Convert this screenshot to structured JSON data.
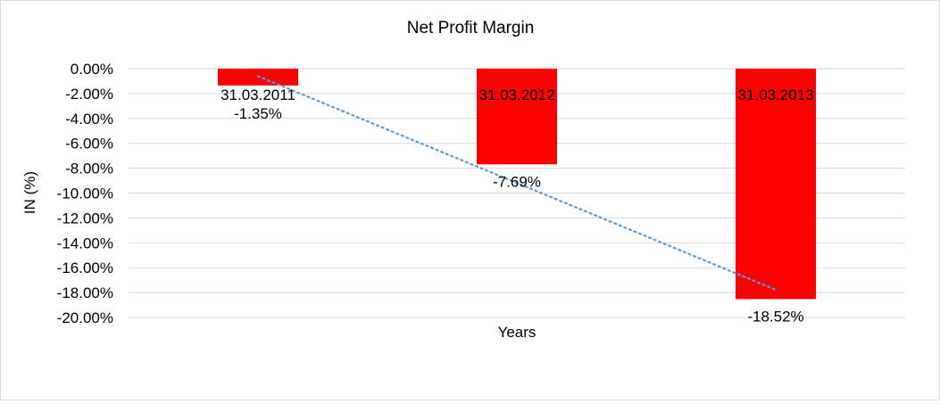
{
  "chart_data": {
    "type": "bar",
    "title": "Net Profit Margin",
    "xlabel": "Years",
    "ylabel": "IN (%)",
    "categories": [
      "31.03.2011",
      "31.03.2012",
      "31.03.2013"
    ],
    "values": [
      -1.35,
      -7.69,
      -18.52
    ],
    "data_labels": [
      "-1.35%",
      "-7.69%",
      "-18.52%"
    ],
    "ylim": [
      -20,
      0
    ],
    "yticks": [
      0,
      -2,
      -4,
      -6,
      -8,
      -10,
      -12,
      -14,
      -16,
      -18,
      -20
    ],
    "ytick_labels": [
      "0.00%",
      "-2.00%",
      "-4.00%",
      "-6.00%",
      "-8.00%",
      "-10.00%",
      "-12.00%",
      "-14.00%",
      "-16.00%",
      "-18.00%",
      "-20.00%"
    ],
    "grid": true,
    "trendline": {
      "type": "linear",
      "style": "dotted"
    },
    "colors": {
      "bar": "#ff0000",
      "trendline": "#5b9bd5",
      "grid": "#d9d9d9"
    }
  }
}
